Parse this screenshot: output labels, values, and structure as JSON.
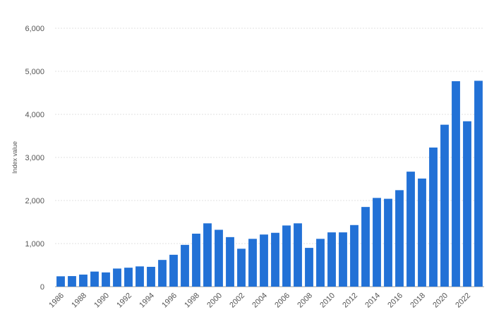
{
  "chart_data": {
    "type": "bar",
    "ylabel": "Index value",
    "ylim": [
      0,
      6000
    ],
    "y_ticks": [
      0,
      1000,
      2000,
      3000,
      4000,
      5000,
      6000
    ],
    "y_tick_labels": [
      "0",
      "1,000",
      "2,000",
      "3,000",
      "4,000",
      "5,000",
      "6,000"
    ],
    "grid": true,
    "bar_color": "#2271d6",
    "grid_color": "#e2e2e2",
    "categories": [
      "1986",
      "1987",
      "1988",
      "1989",
      "1990",
      "1991",
      "1992",
      "1993",
      "1994",
      "1995",
      "1996",
      "1997",
      "1998",
      "1999",
      "2000",
      "2001",
      "2002",
      "2003",
      "2004",
      "2005",
      "2006",
      "2007",
      "2008",
      "2009",
      "2010",
      "2011",
      "2012",
      "2013",
      "2014",
      "2015",
      "2016",
      "2017",
      "2018",
      "2019",
      "2020",
      "2021",
      "2022",
      "2023"
    ],
    "x_tick_labels": [
      "1986",
      "1988",
      "1990",
      "1992",
      "1994",
      "1996",
      "1998",
      "2000",
      "2002",
      "2004",
      "2006",
      "2008",
      "2010",
      "2012",
      "2014",
      "2016",
      "2018",
      "2020",
      "2022"
    ],
    "values": [
      240,
      245,
      280,
      350,
      330,
      420,
      440,
      470,
      460,
      620,
      740,
      970,
      1230,
      1470,
      1320,
      1150,
      880,
      1110,
      1210,
      1250,
      1420,
      1470,
      900,
      1110,
      1260,
      1260,
      1430,
      1850,
      2060,
      2040,
      2240,
      2670,
      2510,
      3230,
      3760,
      4770,
      3840,
      4780
    ]
  }
}
